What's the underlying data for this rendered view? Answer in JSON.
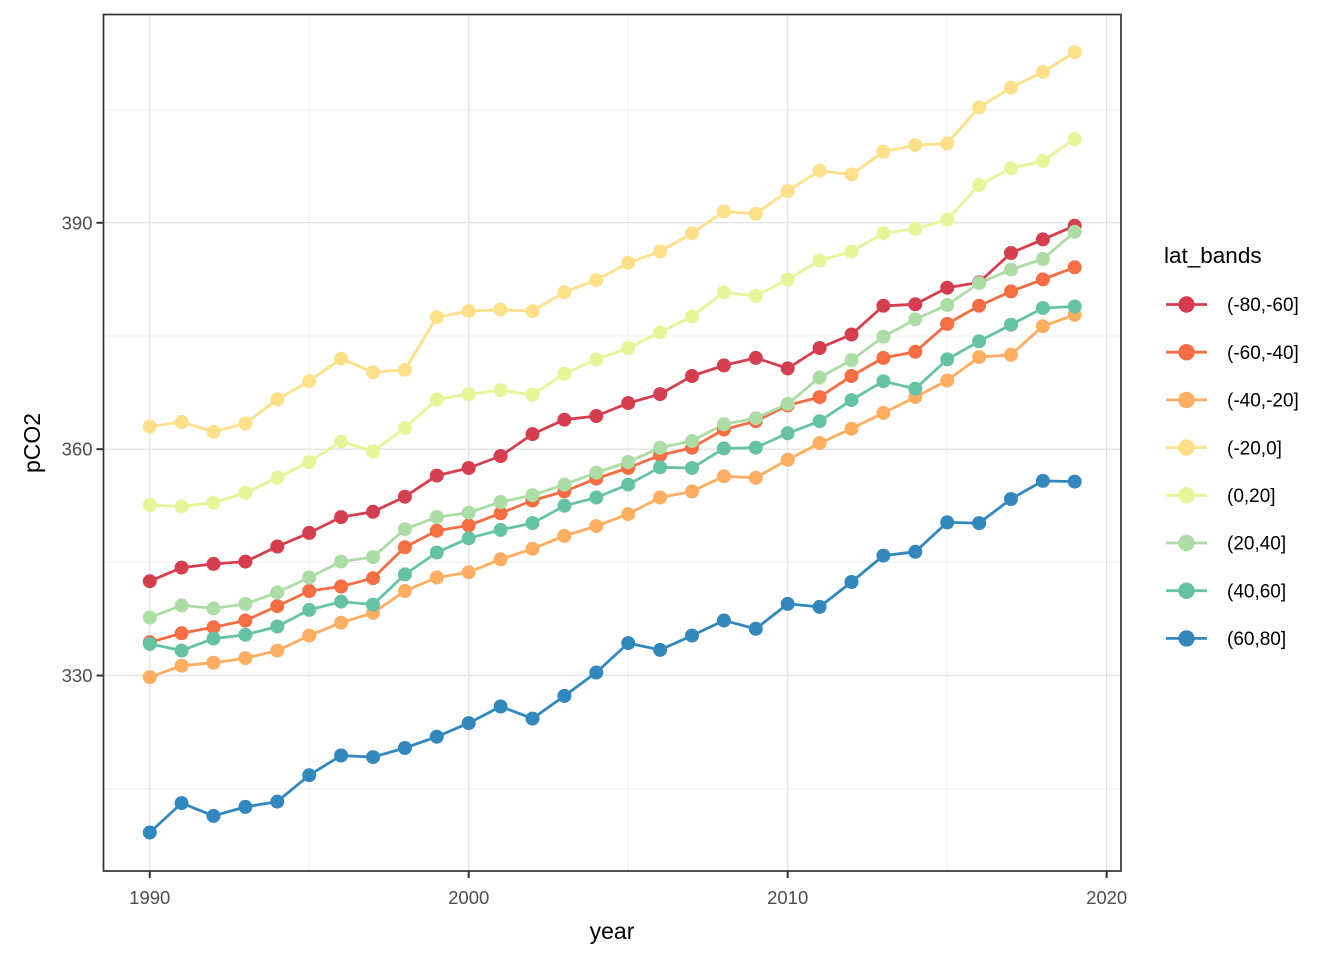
{
  "chart_data": {
    "type": "line",
    "title": "",
    "xlabel": "year",
    "ylabel": "pCO2",
    "legend": {
      "title": "lat_bands",
      "position": "right"
    },
    "grid": true,
    "xlim": [
      1988.55,
      2020.45
    ],
    "ylim": [
      304.1,
      417.6
    ],
    "x_ticks": {
      "major": [
        1990,
        2000,
        2010,
        2020
      ],
      "labels": [
        "1990",
        "2000",
        "2010",
        "2020"
      ],
      "minor": [
        1995,
        2005,
        2015
      ]
    },
    "y_ticks": {
      "major": [
        330,
        360,
        390
      ],
      "labels": [
        "330",
        "360",
        "390"
      ],
      "minor": [
        315,
        345,
        375,
        405
      ]
    },
    "x": [
      1990,
      1991,
      1992,
      1993,
      1994,
      1995,
      1996,
      1997,
      1998,
      1999,
      2000,
      2001,
      2002,
      2003,
      2004,
      2005,
      2006,
      2007,
      2008,
      2009,
      2010,
      2011,
      2012,
      2013,
      2014,
      2015,
      2016,
      2017,
      2018,
      2019
    ],
    "series": [
      {
        "name": "(-80,-60]",
        "color": "#d53e4f",
        "values": [
          342.5,
          344.3,
          344.8,
          345.1,
          347.1,
          348.9,
          351.0,
          351.7,
          353.7,
          356.5,
          357.5,
          359.1,
          362.0,
          363.9,
          364.4,
          366.1,
          367.3,
          369.7,
          371.1,
          372.1,
          370.7,
          373.4,
          375.2,
          379.0,
          379.2,
          381.4,
          382.1,
          386.0,
          387.8,
          389.6
        ]
      },
      {
        "name": "(-60,-40]",
        "color": "#f46d43",
        "values": [
          334.4,
          335.6,
          336.4,
          337.3,
          339.2,
          341.2,
          341.8,
          342.9,
          347.0,
          349.2,
          349.9,
          351.5,
          353.2,
          354.4,
          356.1,
          357.5,
          359.2,
          360.2,
          362.6,
          363.7,
          365.8,
          366.9,
          369.7,
          372.1,
          372.9,
          376.6,
          379.0,
          380.9,
          382.5,
          384.1
        ]
      },
      {
        "name": "(-40,-20]",
        "color": "#fdae61",
        "values": [
          329.8,
          331.3,
          331.7,
          332.3,
          333.3,
          335.3,
          337.0,
          338.3,
          341.2,
          343.0,
          343.7,
          345.4,
          346.8,
          348.5,
          349.8,
          351.4,
          353.6,
          354.4,
          356.4,
          356.2,
          358.6,
          360.8,
          362.7,
          364.8,
          366.9,
          369.1,
          372.2,
          372.5,
          376.3,
          377.8
        ]
      },
      {
        "name": "(-20,0]",
        "color": "#fee08b",
        "values": [
          363.0,
          363.6,
          362.3,
          363.4,
          366.6,
          369.0,
          372.0,
          370.2,
          370.5,
          377.5,
          378.3,
          378.5,
          378.3,
          380.8,
          382.4,
          384.7,
          386.2,
          388.6,
          391.5,
          391.2,
          394.2,
          396.9,
          396.4,
          399.4,
          400.3,
          400.5,
          405.3,
          407.9,
          410.0,
          412.6
        ]
      },
      {
        "name": "(0,20]",
        "color": "#e6f598",
        "values": [
          352.6,
          352.4,
          352.9,
          354.2,
          356.2,
          358.3,
          361.0,
          359.7,
          362.8,
          366.6,
          367.3,
          367.8,
          367.2,
          370.0,
          371.9,
          373.4,
          375.5,
          377.6,
          380.8,
          380.3,
          382.5,
          385.0,
          386.2,
          388.6,
          389.2,
          390.4,
          395.0,
          397.2,
          398.2,
          401.1
        ]
      },
      {
        "name": "(20,40]",
        "color": "#abdda4",
        "values": [
          337.7,
          339.3,
          338.9,
          339.5,
          341.0,
          343.0,
          345.1,
          345.7,
          349.4,
          351.0,
          351.6,
          353.0,
          353.9,
          355.3,
          356.9,
          358.3,
          360.2,
          361.1,
          363.3,
          364.1,
          366.0,
          369.5,
          371.8,
          374.9,
          377.2,
          379.1,
          382.0,
          383.8,
          385.2,
          388.8
        ]
      },
      {
        "name": "(40,60]",
        "color": "#66c2a5",
        "values": [
          334.2,
          333.3,
          334.9,
          335.4,
          336.5,
          338.7,
          339.8,
          339.4,
          343.4,
          346.3,
          348.2,
          349.3,
          350.2,
          352.5,
          353.6,
          355.3,
          357.6,
          357.5,
          360.1,
          360.2,
          362.1,
          363.7,
          366.5,
          369.0,
          368.0,
          371.9,
          374.3,
          376.5,
          378.7,
          378.9
        ]
      },
      {
        "name": "(60,80]",
        "color": "#3288bd",
        "values": [
          309.2,
          313.1,
          311.4,
          312.6,
          313.3,
          316.8,
          319.4,
          319.2,
          320.4,
          321.9,
          323.7,
          325.9,
          324.3,
          327.3,
          330.4,
          334.3,
          333.4,
          335.3,
          337.3,
          336.2,
          339.5,
          339.1,
          342.4,
          345.9,
          346.4,
          350.3,
          350.2,
          353.4,
          355.8,
          355.7
        ]
      }
    ],
    "theme": {
      "background": "#ffffff",
      "panel_border": "#333333",
      "grid_major": "#e3e3e3",
      "grid_minor": "#f0f0f0",
      "tick_mark": "#333333",
      "axis_text": "#4d4d4d",
      "axis_title": "#000000",
      "legend_text": "#000000"
    }
  }
}
